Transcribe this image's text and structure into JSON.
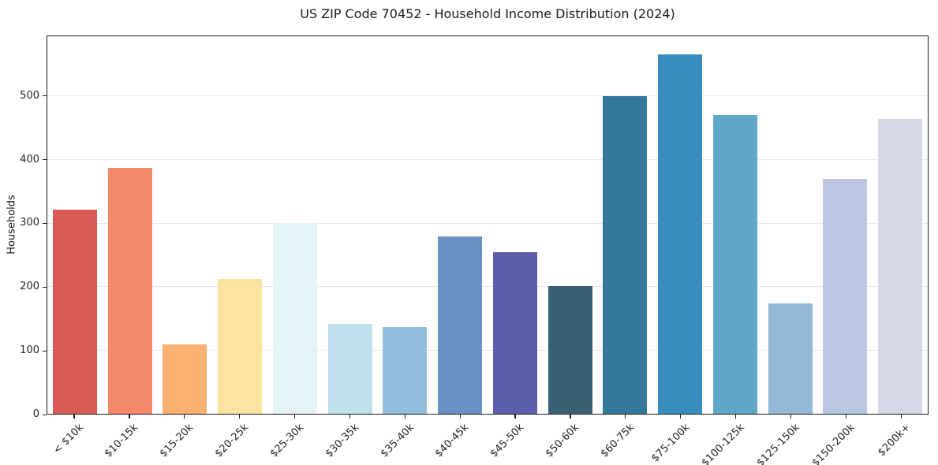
{
  "chart_data": {
    "type": "bar",
    "title": "US ZIP Code 70452 - Household Income Distribution (2024)",
    "xlabel": "",
    "ylabel": "Households",
    "categories": [
      "< $10k",
      "$10-15k",
      "$15-20k",
      "$20-25k",
      "$25-30k",
      "$30-35k",
      "$35-40k",
      "$40-45k",
      "$45-50k",
      "$50-60k",
      "$60-75k",
      "$75-100k",
      "$100-125k",
      "$125-150k",
      "$150-200k",
      "$200k+"
    ],
    "values": [
      322,
      388,
      109,
      212,
      301,
      142,
      137,
      279,
      255,
      201,
      500,
      567,
      471,
      174,
      370,
      465
    ],
    "bar_colors": [
      "#d85c55",
      "#f4896a",
      "#fab172",
      "#fde3a1",
      "#e4f3f6",
      "#bfe0ec",
      "#94bedd",
      "#6c91c4",
      "#5c5dab",
      "#3a5f73",
      "#35789c",
      "#388dc0",
      "#60a6c9",
      "#94b8d7",
      "#bac9e1",
      "#d6d8e5"
    ],
    "yticks": [
      0,
      100,
      200,
      300,
      400,
      500
    ],
    "ylim": [
      0,
      595
    ],
    "grid": "horizontal-light",
    "legend": "none",
    "axis_color": "#1a1a1a",
    "gridline_color": "#e8e8e8"
  }
}
